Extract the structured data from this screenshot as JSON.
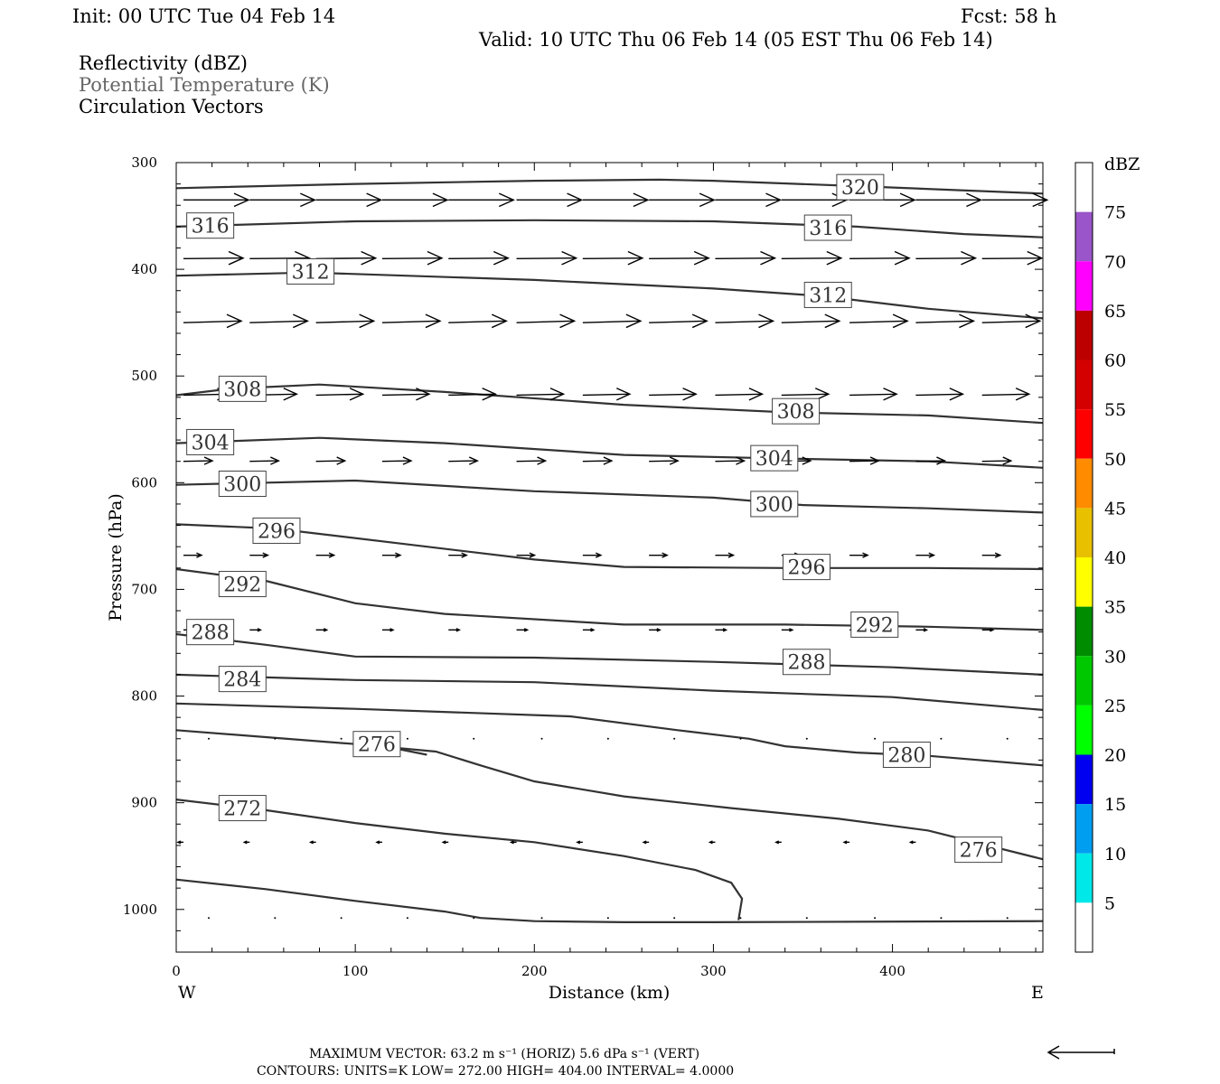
{
  "header": {
    "init": "Init: 00 UTC Tue 04 Feb 14",
    "fcst": "Fcst:   58 h",
    "valid": "Valid: 10 UTC Thu 06 Feb 14 (05 EST Thu 06 Feb 14)"
  },
  "fields": {
    "reflectivity": "Reflectivity (dBZ)",
    "theta": "Potential Temperature (K)",
    "vectors": "Circulation Vectors"
  },
  "colors": {
    "contour": "#333333",
    "theta_legend": "#666666",
    "frame": "#000000"
  },
  "chart_data": {
    "type": "line",
    "xlabel": "Distance (km)",
    "ylabel": "Pressure (hPa)",
    "xlim": [
      0,
      484
    ],
    "ylim": [
      1040,
      300
    ],
    "x_ticks": [
      0,
      100,
      200,
      300,
      400
    ],
    "y_ticks": [
      300,
      400,
      500,
      600,
      700,
      800,
      900,
      1000
    ],
    "west_label": "W",
    "east_label": "E",
    "contours": [
      {
        "label": "320",
        "points": [
          [
            0,
            324
          ],
          [
            100,
            320
          ],
          [
            200,
            317
          ],
          [
            270,
            316
          ],
          [
            300,
            317
          ],
          [
            380,
            322
          ],
          [
            484,
            329
          ]
        ],
        "labels": [
          [
            382,
            323
          ]
        ]
      },
      {
        "label": "316",
        "points": [
          [
            0,
            360
          ],
          [
            100,
            355
          ],
          [
            200,
            354
          ],
          [
            300,
            355
          ],
          [
            380,
            360
          ],
          [
            440,
            367
          ],
          [
            484,
            370
          ]
        ],
        "labels": [
          [
            19,
            359
          ],
          [
            364,
            361
          ]
        ]
      },
      {
        "label": "312",
        "points": [
          [
            0,
            406
          ],
          [
            75,
            403
          ],
          [
            200,
            410
          ],
          [
            300,
            418
          ],
          [
            360,
            425
          ],
          [
            420,
            437
          ],
          [
            484,
            446
          ]
        ],
        "labels": [
          [
            75,
            402
          ],
          [
            364,
            424
          ]
        ]
      },
      {
        "label": "308",
        "points": [
          [
            0,
            518
          ],
          [
            30,
            512
          ],
          [
            80,
            508
          ],
          [
            150,
            515
          ],
          [
            250,
            527
          ],
          [
            340,
            534
          ],
          [
            420,
            537
          ],
          [
            484,
            544
          ]
        ],
        "labels": [
          [
            37,
            512
          ],
          [
            346,
            533
          ]
        ]
      },
      {
        "label": "304",
        "points": [
          [
            0,
            563
          ],
          [
            80,
            558
          ],
          [
            150,
            563
          ],
          [
            250,
            574
          ],
          [
            330,
            577
          ],
          [
            420,
            580
          ],
          [
            484,
            586
          ]
        ],
        "labels": [
          [
            19,
            562
          ],
          [
            334,
            577
          ]
        ]
      },
      {
        "label": "300",
        "points": [
          [
            0,
            602
          ],
          [
            100,
            598
          ],
          [
            200,
            608
          ],
          [
            300,
            614
          ],
          [
            350,
            621
          ],
          [
            420,
            624
          ],
          [
            484,
            628
          ]
        ],
        "labels": [
          [
            37,
            601
          ],
          [
            334,
            620
          ]
        ]
      },
      {
        "label": "296",
        "points": [
          [
            0,
            639
          ],
          [
            55,
            643
          ],
          [
            130,
            658
          ],
          [
            200,
            672
          ],
          [
            250,
            679
          ],
          [
            340,
            680
          ],
          [
            420,
            680
          ],
          [
            484,
            681
          ]
        ],
        "labels": [
          [
            56,
            645
          ],
          [
            352,
            679
          ]
        ]
      },
      {
        "label": "292",
        "points": [
          [
            0,
            681
          ],
          [
            50,
            692
          ],
          [
            100,
            713
          ],
          [
            150,
            723
          ],
          [
            250,
            733
          ],
          [
            340,
            733
          ],
          [
            420,
            735
          ],
          [
            484,
            738
          ]
        ],
        "labels": [
          [
            37,
            695
          ],
          [
            390,
            733
          ]
        ]
      },
      {
        "label": "288",
        "points": [
          [
            0,
            742
          ],
          [
            50,
            752
          ],
          [
            100,
            763
          ],
          [
            200,
            764
          ],
          [
            300,
            768
          ],
          [
            400,
            773
          ],
          [
            484,
            780
          ]
        ],
        "labels": [
          [
            19,
            740
          ],
          [
            352,
            768
          ]
        ]
      },
      {
        "label": "284",
        "points": [
          [
            0,
            780
          ],
          [
            100,
            785
          ],
          [
            200,
            787
          ],
          [
            300,
            795
          ],
          [
            400,
            801
          ],
          [
            484,
            813
          ]
        ],
        "labels": [
          [
            37,
            784
          ]
        ]
      },
      {
        "label": "280",
        "points": [
          [
            0,
            807
          ],
          [
            100,
            812
          ],
          [
            220,
            819
          ],
          [
            280,
            832
          ],
          [
            320,
            840
          ],
          [
            340,
            847
          ],
          [
            380,
            853
          ],
          [
            420,
            856
          ],
          [
            484,
            865
          ]
        ],
        "labels": [
          [
            408,
            855
          ]
        ]
      },
      {
        "label": "276",
        "points": [
          [
            0,
            832
          ],
          [
            100,
            845
          ],
          [
            145,
            852
          ],
          [
            170,
            865
          ],
          [
            200,
            880
          ],
          [
            250,
            894
          ],
          [
            310,
            905
          ],
          [
            370,
            915
          ],
          [
            420,
            926
          ],
          [
            484,
            953
          ]
        ],
        "labels": [
          [
            448,
            944
          ]
        ]
      },
      {
        "label": "276",
        "points": [
          [
            110,
            845
          ],
          [
            140,
            855
          ]
        ],
        "labels": [
          [
            112,
            845
          ]
        ]
      },
      {
        "label": "272",
        "points": [
          [
            0,
            897
          ],
          [
            50,
            907
          ],
          [
            100,
            919
          ],
          [
            150,
            929
          ],
          [
            200,
            937
          ],
          [
            250,
            950
          ],
          [
            290,
            963
          ],
          [
            310,
            975
          ],
          [
            316,
            990
          ],
          [
            314,
            1010
          ]
        ],
        "labels": [
          [
            37,
            905
          ]
        ]
      },
      {
        "label": "",
        "points": [
          [
            0,
            972
          ],
          [
            50,
            981
          ],
          [
            100,
            992
          ],
          [
            150,
            1002
          ],
          [
            170,
            1008
          ],
          [
            200,
            1011
          ],
          [
            250,
            1012
          ],
          [
            300,
            1012
          ],
          [
            484,
            1011
          ]
        ],
        "labels": []
      }
    ],
    "vector_levels": [
      {
        "p": 335,
        "u": 36,
        "w": 0
      },
      {
        "p": 390,
        "u": 33,
        "w": -1
      },
      {
        "p": 450,
        "u": 32,
        "w": -3
      },
      {
        "p": 518,
        "u": 26,
        "w": -2
      },
      {
        "p": 580,
        "u": 16,
        "w": -1
      },
      {
        "p": 668,
        "u": 10,
        "w": 0
      },
      {
        "p": 738,
        "u": 6,
        "w": 0
      },
      {
        "p": 840,
        "u": 0,
        "w": 0
      },
      {
        "p": 937,
        "u": -3,
        "w": 0
      },
      {
        "p": 1008,
        "u": 1,
        "w": 0
      }
    ],
    "colorbar": {
      "title": "dBZ",
      "levels": [
        "5",
        "10",
        "15",
        "20",
        "25",
        "30",
        "35",
        "40",
        "45",
        "50",
        "55",
        "60",
        "65",
        "70",
        "75"
      ],
      "colors": [
        "#ffffff",
        "#00e8e8",
        "#009ef0",
        "#0000f0",
        "#00ff00",
        "#00c800",
        "#008c00",
        "#ffff00",
        "#e8c000",
        "#ff8c00",
        "#ff0000",
        "#d40000",
        "#bc0000",
        "#ff00ff",
        "#9955c9",
        "#ffffff"
      ]
    }
  },
  "footer": {
    "line1": "MAXIMUM VECTOR:  63.2 m s⁻¹ (HORIZ)          5.6 dPa s⁻¹ (VERT)",
    "line2": "CONTOURS:  UNITS=K  LOW=  272.00       HIGH=  404.00       INTERVAL=     4.0000"
  }
}
